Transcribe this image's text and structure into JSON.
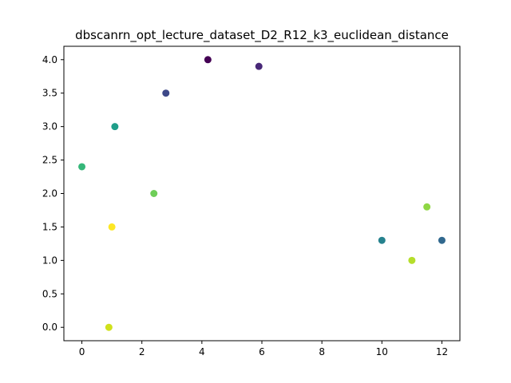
{
  "chart_data": {
    "type": "scatter",
    "title": "dbscanrn_opt_lecture_dataset_D2_R12_k3_euclidean_distance",
    "xlabel": "",
    "ylabel": "",
    "xlim": [
      -0.6,
      12.6
    ],
    "ylim": [
      -0.2,
      4.2
    ],
    "xticks": [
      0,
      2,
      4,
      6,
      8,
      10,
      12
    ],
    "yticks": [
      0.0,
      0.5,
      1.0,
      1.5,
      2.0,
      2.5,
      3.0,
      3.5,
      4.0
    ],
    "xtick_labels": [
      "0",
      "2",
      "4",
      "6",
      "8",
      "10",
      "12"
    ],
    "ytick_labels": [
      "0.0",
      "0.5",
      "1.0",
      "1.5",
      "2.0",
      "2.5",
      "3.0",
      "3.5",
      "4.0"
    ],
    "grid": false,
    "points": [
      {
        "x": 4.2,
        "y": 4.0,
        "color": "#440154"
      },
      {
        "x": 5.9,
        "y": 3.9,
        "color": "#482878"
      },
      {
        "x": 2.8,
        "y": 3.5,
        "color": "#3e4989"
      },
      {
        "x": 12.0,
        "y": 1.3,
        "color": "#31688e"
      },
      {
        "x": 10.0,
        "y": 1.3,
        "color": "#26828e"
      },
      {
        "x": 1.1,
        "y": 3.0,
        "color": "#1f9e89"
      },
      {
        "x": 0.0,
        "y": 2.4,
        "color": "#35b779"
      },
      {
        "x": 2.4,
        "y": 2.0,
        "color": "#6ece58"
      },
      {
        "x": 11.5,
        "y": 1.8,
        "color": "#8fd744"
      },
      {
        "x": 11.0,
        "y": 1.0,
        "color": "#b5de2b"
      },
      {
        "x": 0.9,
        "y": 0.0,
        "color": "#d0e11c"
      },
      {
        "x": 1.0,
        "y": 1.5,
        "color": "#fde725"
      }
    ]
  }
}
